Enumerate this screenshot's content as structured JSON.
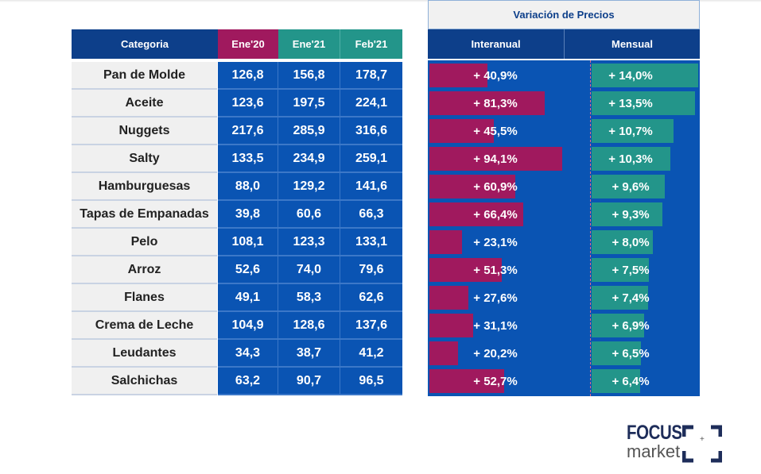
{
  "chart_data": {
    "type": "table",
    "group_header": "Variación de Precios",
    "columns": [
      "Categoria",
      "Ene'20",
      "Ene'21",
      "Feb'21",
      "Interanual",
      "Mensual"
    ],
    "rows": [
      {
        "categoria": "Pan de Molde",
        "ene20": "126,8",
        "ene21": "156,8",
        "feb21": "178,7",
        "interanual": 40.9,
        "interanual_label": "+ 40,9%",
        "mensual": 14.0,
        "mensual_label": "+ 14,0%"
      },
      {
        "categoria": "Aceite",
        "ene20": "123,6",
        "ene21": "197,5",
        "feb21": "224,1",
        "interanual": 81.3,
        "interanual_label": "+ 81,3%",
        "mensual": 13.5,
        "mensual_label": "+ 13,5%"
      },
      {
        "categoria": "Nuggets",
        "ene20": "217,6",
        "ene21": "285,9",
        "feb21": "316,6",
        "interanual": 45.5,
        "interanual_label": "+ 45,5%",
        "mensual": 10.7,
        "mensual_label": "+ 10,7%"
      },
      {
        "categoria": "Salty",
        "ene20": "133,5",
        "ene21": "234,9",
        "feb21": "259,1",
        "interanual": 94.1,
        "interanual_label": "+ 94,1%",
        "mensual": 10.3,
        "mensual_label": "+ 10,3%"
      },
      {
        "categoria": "Hamburguesas",
        "ene20": "88,0",
        "ene21": "129,2",
        "feb21": "141,6",
        "interanual": 60.9,
        "interanual_label": "+ 60,9%",
        "mensual": 9.6,
        "mensual_label": "+ 9,6%"
      },
      {
        "categoria": "Tapas de Empanadas",
        "ene20": "39,8",
        "ene21": "60,6",
        "feb21": "66,3",
        "interanual": 66.4,
        "interanual_label": "+ 66,4%",
        "mensual": 9.3,
        "mensual_label": "+ 9,3%"
      },
      {
        "categoria": "Pelo",
        "ene20": "108,1",
        "ene21": "123,3",
        "feb21": "133,1",
        "interanual": 23.1,
        "interanual_label": "+ 23,1%",
        "mensual": 8.0,
        "mensual_label": "+ 8,0%"
      },
      {
        "categoria": "Arroz",
        "ene20": "52,6",
        "ene21": "74,0",
        "feb21": "79,6",
        "interanual": 51.3,
        "interanual_label": "+ 51,3%",
        "mensual": 7.5,
        "mensual_label": "+ 7,5%"
      },
      {
        "categoria": "Flanes",
        "ene20": "49,1",
        "ene21": "58,3",
        "feb21": "62,6",
        "interanual": 27.6,
        "interanual_label": "+ 27,6%",
        "mensual": 7.4,
        "mensual_label": "+ 7,4%"
      },
      {
        "categoria": "Crema de Leche",
        "ene20": "104,9",
        "ene21": "128,6",
        "feb21": "137,6",
        "interanual": 31.1,
        "interanual_label": "+ 31,1%",
        "mensual": 6.9,
        "mensual_label": "+ 6,9%"
      },
      {
        "categoria": "Leudantes",
        "ene20": "34,3",
        "ene21": "38,7",
        "feb21": "41,2",
        "interanual": 20.2,
        "interanual_label": "+ 20,2%",
        "mensual": 6.5,
        "mensual_label": "+ 6,5%"
      },
      {
        "categoria": "Salchichas",
        "ene20": "63,2",
        "ene21": "90,7",
        "feb21": "96,5",
        "interanual": 52.7,
        "interanual_label": "+ 52,7%",
        "mensual": 6.4,
        "mensual_label": "+ 6,4%"
      }
    ]
  },
  "colors": {
    "header_blue": "#0d3f8a",
    "cell_blue": "#0a54b3",
    "magenta": "#a0195e",
    "teal": "#23958a",
    "category_bg": "#f0f0f0"
  },
  "logo": {
    "line1": "FOCUS",
    "line2": "market"
  }
}
